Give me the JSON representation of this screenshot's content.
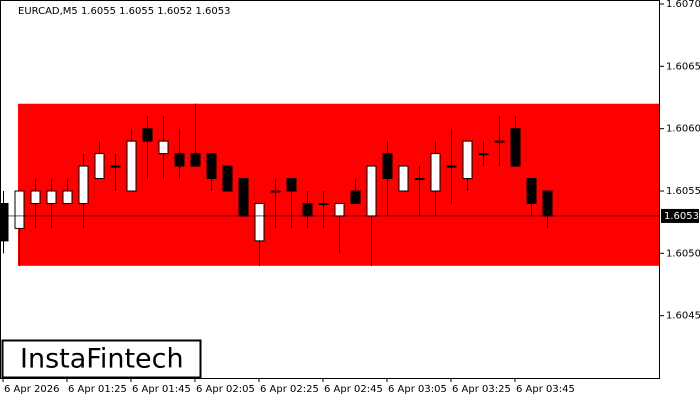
{
  "chart_data": {
    "type": "candlestick",
    "title": "EURCAD,M5  1.6055 1.6055 1.6052 1.6053",
    "logo": "InstaFintech",
    "categories": [
      "6 Apr 2026",
      null,
      null,
      null,
      "6 Apr 01:25",
      null,
      null,
      null,
      "6 Apr 01:45",
      null,
      null,
      null,
      "6 Apr 02:05",
      null,
      null,
      null,
      "6 Apr 02:25",
      null,
      null,
      null,
      "6 Apr 02:45",
      null,
      null,
      null,
      "6 Apr 03:05",
      null,
      null,
      null,
      "6 Apr 03:25",
      null,
      null,
      null,
      "6 Apr 03:45",
      null,
      null
    ],
    "open": [
      1.6054,
      1.6052,
      1.6054,
      1.6054,
      1.6054,
      1.6054,
      1.6056,
      1.6057,
      1.6055,
      1.606,
      1.6058,
      1.6058,
      1.6058,
      1.6058,
      1.6057,
      1.6056,
      1.6051,
      1.6055,
      1.6056,
      1.6054,
      1.6054,
      1.6053,
      1.6055,
      1.6053,
      1.6058,
      1.6055,
      1.6056,
      1.6055,
      1.6057,
      1.6056,
      1.6058,
      1.6059,
      1.606,
      1.6056,
      1.6055
    ],
    "high": [
      1.6055,
      1.6055,
      1.6056,
      1.6056,
      1.6056,
      1.6058,
      1.6059,
      1.6058,
      1.606,
      1.6061,
      1.6061,
      1.606,
      1.6062,
      1.6058,
      1.6057,
      1.6056,
      1.6054,
      1.6056,
      1.6056,
      1.6055,
      1.6055,
      1.6054,
      1.6056,
      1.6057,
      1.6059,
      1.6057,
      1.6057,
      1.6059,
      1.606,
      1.6059,
      1.6059,
      1.6061,
      1.6061,
      1.6056,
      1.6055
    ],
    "low": [
      1.605,
      1.6049,
      1.6052,
      1.6052,
      1.6054,
      1.6052,
      1.6056,
      1.6055,
      1.6055,
      1.6056,
      1.6056,
      1.6056,
      1.6057,
      1.6055,
      1.6055,
      1.6053,
      1.6049,
      1.6052,
      1.6052,
      1.6052,
      1.6052,
      1.605,
      1.6054,
      1.6049,
      1.6053,
      1.6055,
      1.6053,
      1.6053,
      1.6054,
      1.6055,
      1.6057,
      1.6057,
      1.6057,
      1.6053,
      1.6052
    ],
    "close": [
      1.6051,
      1.6055,
      1.6055,
      1.6055,
      1.6055,
      1.6057,
      1.6058,
      1.6057,
      1.6059,
      1.6059,
      1.6059,
      1.6057,
      1.6057,
      1.6056,
      1.6055,
      1.6053,
      1.6054,
      1.6055,
      1.6055,
      1.6053,
      1.6054,
      1.6054,
      1.6054,
      1.6057,
      1.6056,
      1.6057,
      1.6056,
      1.6058,
      1.6057,
      1.6059,
      1.6058,
      1.6059,
      1.6057,
      1.6054,
      1.6053
    ],
    "up_color": "#ffffff",
    "down_color": "#000000",
    "zone_color": "#ff0000",
    "zone": [
      1.6049,
      1.6062
    ],
    "last_price": 1.6053,
    "ylim": [
      1.604,
      1.607
    ],
    "yticks": [
      1.6045,
      {
        "value": 1.605,
        "label": "1.6050"
      },
      1.6055,
      {
        "value": 1.606,
        "label": "1.6060"
      },
      1.6065,
      {
        "value": 1.607,
        "label": "1.6070"
      }
    ]
  }
}
